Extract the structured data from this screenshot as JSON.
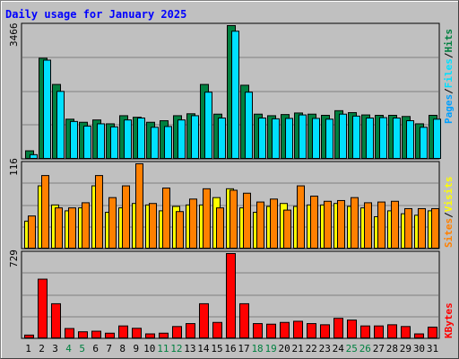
{
  "chart_data": [
    {
      "type": "bar",
      "panel": "hits-files-pages",
      "title": "Daily usage for January 2025",
      "categories": [
        "1",
        "2",
        "3",
        "4",
        "5",
        "6",
        "7",
        "8",
        "9",
        "10",
        "11",
        "12",
        "13",
        "14",
        "15",
        "16",
        "17",
        "18",
        "19",
        "20",
        "21",
        "22",
        "23",
        "24",
        "25",
        "26",
        "27",
        "28",
        "29",
        "30",
        "31"
      ],
      "ymax_label": "3466",
      "ylim": [
        0,
        3466
      ],
      "legend_order": [
        "Pages",
        "Files",
        "Hits"
      ],
      "series": [
        {
          "name": "Hits",
          "color": "#008040",
          "values": [
            220,
            2620,
            1940,
            1040,
            960,
            1020,
            920,
            1130,
            1090,
            960,
            1000,
            1130,
            1180,
            1940,
            1170,
            3466,
            1920,
            1170,
            1130,
            1160,
            1200,
            1170,
            1140,
            1260,
            1210,
            1150,
            1140,
            1140,
            1110,
            920,
            1140
          ]
        },
        {
          "name": "Files",
          "color": "#00e0ff",
          "values": [
            120,
            2570,
            1760,
            980,
            860,
            920,
            840,
            1020,
            1070,
            830,
            850,
            1020,
            1130,
            1740,
            1070,
            3320,
            1740,
            1070,
            1050,
            1060,
            1150,
            1060,
            1040,
            1170,
            1120,
            1070,
            1080,
            1070,
            1000,
            830,
            1040
          ]
        },
        {
          "name": "Pages",
          "color": "#00a0ff",
          "values": [
            0,
            0,
            0,
            0,
            0,
            0,
            0,
            0,
            0,
            0,
            0,
            0,
            0,
            0,
            0,
            0,
            0,
            0,
            0,
            0,
            0,
            0,
            0,
            0,
            0,
            0,
            0,
            0,
            0,
            0,
            0
          ]
        }
      ]
    },
    {
      "type": "bar",
      "panel": "visits-sites",
      "categories": [
        "1",
        "2",
        "3",
        "4",
        "5",
        "6",
        "7",
        "8",
        "9",
        "10",
        "11",
        "12",
        "13",
        "14",
        "15",
        "16",
        "17",
        "18",
        "19",
        "20",
        "21",
        "22",
        "23",
        "24",
        "25",
        "26",
        "27",
        "28",
        "29",
        "30",
        "31"
      ],
      "ymax_label": "116",
      "ylim": [
        0,
        116
      ],
      "legend_order": [
        "Sites",
        "Visits"
      ],
      "series": [
        {
          "name": "Visits",
          "color": "#ffff00",
          "values": [
            38,
            86,
            60,
            52,
            56,
            86,
            50,
            56,
            62,
            60,
            52,
            58,
            60,
            60,
            70,
            82,
            56,
            50,
            58,
            62,
            58,
            60,
            60,
            62,
            58,
            56,
            44,
            52,
            48,
            46,
            52
          ]
        },
        {
          "name": "Sites",
          "color": "#ff8000",
          "values": [
            45,
            100,
            56,
            56,
            63,
            100,
            70,
            86,
            116,
            62,
            83,
            51,
            68,
            82,
            56,
            80,
            76,
            64,
            68,
            53,
            86,
            72,
            65,
            66,
            70,
            63,
            64,
            65,
            55,
            55,
            55
          ]
        }
      ]
    },
    {
      "type": "bar",
      "panel": "kbytes",
      "categories": [
        "1",
        "2",
        "3",
        "4",
        "5",
        "6",
        "7",
        "8",
        "9",
        "10",
        "11",
        "12",
        "13",
        "14",
        "15",
        "16",
        "17",
        "18",
        "19",
        "20",
        "21",
        "22",
        "23",
        "24",
        "25",
        "26",
        "27",
        "28",
        "29",
        "30",
        "31"
      ],
      "ymax_label": "729",
      "ylim": [
        0,
        729
      ],
      "legend_order": [
        "KBytes"
      ],
      "series": [
        {
          "name": "KBytes",
          "color": "#ff0000",
          "values": [
            32,
            510,
            300,
            88,
            60,
            65,
            48,
            110,
            90,
            42,
            48,
            105,
            130,
            300,
            140,
            729,
            300,
            130,
            125,
            140,
            150,
            130,
            120,
            175,
            160,
            110,
            110,
            120,
            105,
            42,
            100
          ]
        }
      ]
    }
  ],
  "x_label_colors": {
    "weekday": "#000000",
    "weekend": "#008040"
  },
  "weekend_days": [
    "4",
    "5",
    "11",
    "12",
    "18",
    "19",
    "25",
    "26"
  ],
  "colors": {
    "title": "#0000ff",
    "plot_bg": "#c0c0c0",
    "grid": "#808080",
    "slash": "#000000"
  }
}
